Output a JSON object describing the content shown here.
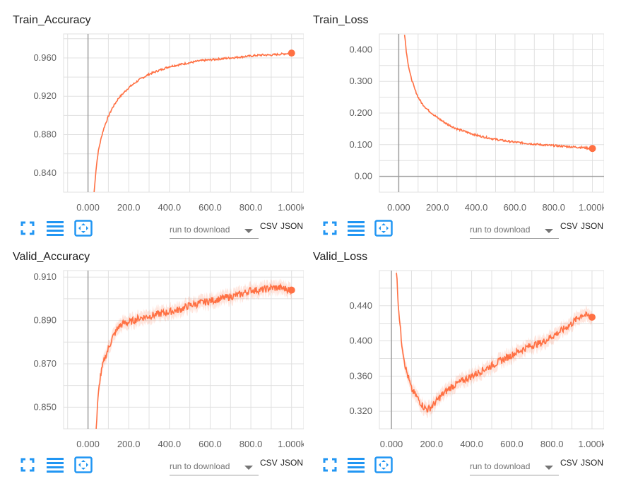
{
  "colors": {
    "series": "#ff7043",
    "toolbar_icon": "#2196f3",
    "grid": "#e0e0e0"
  },
  "toolbar": {
    "select_label": "run to download",
    "csv_label": "CSV",
    "json_label": "JSON",
    "icons": [
      "fullscreen-icon",
      "list-icon",
      "fit-domain-icon"
    ]
  },
  "chart_data": [
    {
      "type": "line",
      "title": "Train_Accuracy",
      "xlim": [
        -120,
        1060
      ],
      "ylim": [
        0.82,
        0.985
      ],
      "x_ticks": [
        "0.000",
        "200.0",
        "400.0",
        "600.0",
        "800.0",
        "1.000k"
      ],
      "x_tick_values": [
        0,
        200,
        400,
        600,
        800,
        1000
      ],
      "y_ticks": [
        "0.840",
        "0.880",
        "0.920",
        "0.960"
      ],
      "y_tick_values": [
        0.84,
        0.88,
        0.92,
        0.96
      ],
      "grid": true,
      "series": [
        {
          "x": [
            30,
            40,
            50,
            60,
            70,
            80,
            100,
            120,
            150,
            200,
            250,
            300,
            350,
            400,
            450,
            500,
            550,
            600,
            650,
            700,
            750,
            800,
            850,
            900,
            950,
            1000
          ],
          "y": [
            0.82,
            0.845,
            0.862,
            0.872,
            0.881,
            0.888,
            0.899,
            0.908,
            0.918,
            0.929,
            0.937,
            0.943,
            0.947,
            0.951,
            0.953,
            0.955,
            0.957,
            0.958,
            0.959,
            0.96,
            0.961,
            0.962,
            0.963,
            0.963,
            0.964,
            0.965
          ]
        }
      ]
    },
    {
      "type": "line",
      "title": "Train_Loss",
      "xlim": [
        -100,
        1060
      ],
      "ylim": [
        -0.05,
        0.45
      ],
      "x_ticks": [
        "0.000",
        "200.0",
        "400.0",
        "600.0",
        "800.0",
        "1.000k"
      ],
      "x_tick_values": [
        0,
        200,
        400,
        600,
        800,
        1000
      ],
      "y_ticks": [
        "0.00",
        "0.100",
        "0.200",
        "0.300",
        "0.400"
      ],
      "y_tick_values": [
        0.0,
        0.1,
        0.2,
        0.3,
        0.4
      ],
      "grid": true,
      "series": [
        {
          "x": [
            30,
            40,
            50,
            60,
            70,
            80,
            100,
            120,
            150,
            200,
            250,
            300,
            350,
            400,
            450,
            500,
            550,
            600,
            650,
            700,
            750,
            800,
            850,
            900,
            950,
            1000
          ],
          "y": [
            0.45,
            0.39,
            0.35,
            0.32,
            0.3,
            0.28,
            0.25,
            0.23,
            0.21,
            0.185,
            0.165,
            0.15,
            0.14,
            0.13,
            0.123,
            0.117,
            0.112,
            0.108,
            0.105,
            0.102,
            0.099,
            0.097,
            0.095,
            0.093,
            0.091,
            0.088
          ]
        }
      ]
    },
    {
      "type": "line",
      "title": "Valid_Accuracy",
      "xlim": [
        -120,
        1060
      ],
      "ylim": [
        0.84,
        0.913
      ],
      "x_ticks": [
        "0.000",
        "200.0",
        "400.0",
        "600.0",
        "800.0",
        "1.000k"
      ],
      "x_tick_values": [
        0,
        200,
        400,
        600,
        800,
        1000
      ],
      "y_ticks": [
        "0.850",
        "0.870",
        "0.890",
        "0.910"
      ],
      "y_tick_values": [
        0.85,
        0.87,
        0.89,
        0.91
      ],
      "grid": true,
      "series": [
        {
          "x": [
            40,
            50,
            60,
            80,
            100,
            120,
            150,
            180,
            200,
            250,
            300,
            350,
            400,
            450,
            500,
            550,
            600,
            650,
            700,
            750,
            800,
            850,
            900,
            950,
            1000
          ],
          "y": [
            0.84,
            0.855,
            0.864,
            0.872,
            0.877,
            0.882,
            0.887,
            0.889,
            0.889,
            0.891,
            0.892,
            0.893,
            0.894,
            0.895,
            0.897,
            0.898,
            0.899,
            0.9,
            0.901,
            0.902,
            0.904,
            0.904,
            0.905,
            0.905,
            0.904
          ]
        }
      ]
    },
    {
      "type": "line",
      "title": "Valid_Loss",
      "xlim": [
        -60,
        1060
      ],
      "ylim": [
        0.3,
        0.48
      ],
      "x_ticks": [
        "0.000",
        "200.0",
        "400.0",
        "600.0",
        "800.0",
        "1.000k"
      ],
      "x_tick_values": [
        0,
        200,
        400,
        600,
        800,
        1000
      ],
      "y_ticks": [
        "0.320",
        "0.360",
        "0.400",
        "0.440"
      ],
      "y_tick_values": [
        0.32,
        0.36,
        0.4,
        0.44
      ],
      "grid": true,
      "series": [
        {
          "x": [
            25,
            35,
            50,
            70,
            100,
            130,
            160,
            180,
            200,
            250,
            300,
            350,
            400,
            450,
            500,
            550,
            600,
            650,
            700,
            750,
            800,
            850,
            900,
            950,
            1000
          ],
          "y": [
            0.48,
            0.44,
            0.4,
            0.37,
            0.345,
            0.335,
            0.325,
            0.322,
            0.325,
            0.338,
            0.348,
            0.354,
            0.36,
            0.366,
            0.372,
            0.378,
            0.384,
            0.39,
            0.395,
            0.398,
            0.405,
            0.412,
            0.42,
            0.43,
            0.427
          ]
        }
      ]
    }
  ]
}
